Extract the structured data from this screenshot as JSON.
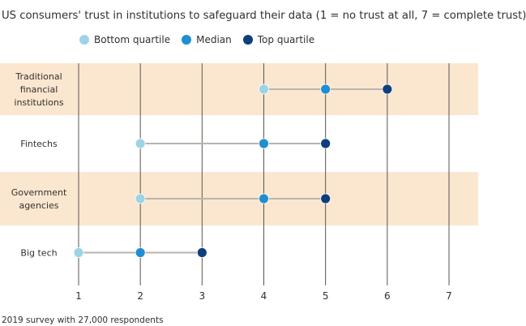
{
  "subtitle": "US consumers' trust in institutions to safeguard their data (1 = no trust at all, 7 = complete trust)",
  "source": "2019 survey with 27,000 respondents",
  "chart_data": {
    "type": "dot-range",
    "categories": [
      "Traditional financial institutions",
      "Fintechs",
      "Government agencies",
      "Big tech"
    ],
    "category_lines": [
      [
        "Traditional",
        "financial",
        "institutions"
      ],
      [
        "Fintechs"
      ],
      [
        "Government",
        "agencies"
      ],
      [
        "Big tech"
      ]
    ],
    "series": [
      {
        "name": "Bottom quartile",
        "color": "#9ed3e6",
        "values": [
          4,
          2,
          2,
          1
        ]
      },
      {
        "name": "Median",
        "color": "#1f8fd1",
        "values": [
          5,
          4,
          4,
          2
        ]
      },
      {
        "name": "Top quartile",
        "color": "#0f3f7a",
        "values": [
          6,
          5,
          5,
          3
        ]
      }
    ],
    "xlim": [
      1,
      7
    ],
    "xticks": [
      "1",
      "2",
      "3",
      "4",
      "5",
      "6",
      "7"
    ],
    "band_color": "#fbe6cf",
    "grid": true,
    "legend": "top"
  }
}
